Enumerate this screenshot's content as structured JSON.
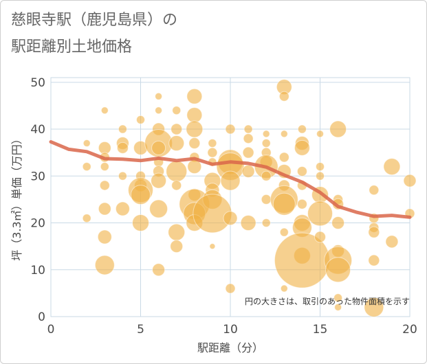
{
  "title_line1": "慈眼寺駅（鹿児島県）の",
  "title_line2": "駅距離別土地価格",
  "colors": {
    "bubble": "#f0b044",
    "trend": "#d9664a",
    "grid": "#c9d9e6",
    "plot_bg": "#ffffff"
  },
  "chart_data": {
    "type": "scatter",
    "xlabel": "駅距離（分）",
    "ylabel": "坪（3.3㎡）単価（万円）",
    "xlim": [
      0,
      20
    ],
    "ylim": [
      0,
      51
    ],
    "x_ticks": [
      "0",
      "5",
      "10",
      "15",
      "20"
    ],
    "y_ticks": [
      "0",
      "10",
      "20",
      "30",
      "40",
      "50"
    ],
    "x_tick_values": [
      0,
      5,
      10,
      15,
      20
    ],
    "y_tick_values": [
      0,
      10,
      20,
      30,
      40,
      50
    ],
    "note": "円の大きさは、取引のあった物件面積を示す",
    "bubbles": [
      {
        "x": 2,
        "y": 37,
        "s": 5
      },
      {
        "x": 2,
        "y": 32,
        "s": 6
      },
      {
        "x": 2,
        "y": 21,
        "s": 6
      },
      {
        "x": 3,
        "y": 44,
        "s": 5
      },
      {
        "x": 3,
        "y": 36,
        "s": 9
      },
      {
        "x": 3,
        "y": 34,
        "s": 7
      },
      {
        "x": 3,
        "y": 32,
        "s": 6
      },
      {
        "x": 3,
        "y": 28,
        "s": 7
      },
      {
        "x": 3,
        "y": 23,
        "s": 9
      },
      {
        "x": 3,
        "y": 17,
        "s": 10
      },
      {
        "x": 3,
        "y": 11,
        "s": 14
      },
      {
        "x": 4,
        "y": 40,
        "s": 6
      },
      {
        "x": 4,
        "y": 37,
        "s": 9
      },
      {
        "x": 4,
        "y": 36,
        "s": 8
      },
      {
        "x": 4,
        "y": 30,
        "s": 6
      },
      {
        "x": 4,
        "y": 23,
        "s": 10
      },
      {
        "x": 5,
        "y": 42,
        "s": 6
      },
      {
        "x": 5,
        "y": 36,
        "s": 10
      },
      {
        "x": 5,
        "y": 30,
        "s": 7
      },
      {
        "x": 5,
        "y": 28,
        "s": 9
      },
      {
        "x": 5,
        "y": 27,
        "s": 18
      },
      {
        "x": 5,
        "y": 26,
        "s": 14
      },
      {
        "x": 5,
        "y": 20,
        "s": 12
      },
      {
        "x": 6,
        "y": 47,
        "s": 5
      },
      {
        "x": 6,
        "y": 44,
        "s": 5
      },
      {
        "x": 6,
        "y": 40,
        "s": 9
      },
      {
        "x": 6,
        "y": 37,
        "s": 20
      },
      {
        "x": 6,
        "y": 36,
        "s": 10
      },
      {
        "x": 6,
        "y": 33,
        "s": 7
      },
      {
        "x": 6,
        "y": 31,
        "s": 8
      },
      {
        "x": 6,
        "y": 29,
        "s": 11
      },
      {
        "x": 6,
        "y": 23,
        "s": 13
      },
      {
        "x": 6,
        "y": 10,
        "s": 9
      },
      {
        "x": 7,
        "y": 44,
        "s": 6
      },
      {
        "x": 7,
        "y": 40,
        "s": 8
      },
      {
        "x": 7,
        "y": 37,
        "s": 11
      },
      {
        "x": 7,
        "y": 31,
        "s": 15
      },
      {
        "x": 7,
        "y": 28,
        "s": 7
      },
      {
        "x": 7,
        "y": 18,
        "s": 12
      },
      {
        "x": 7,
        "y": 15,
        "s": 9
      },
      {
        "x": 8,
        "y": 47,
        "s": 11
      },
      {
        "x": 8,
        "y": 43,
        "s": 11
      },
      {
        "x": 8,
        "y": 40,
        "s": 12
      },
      {
        "x": 8,
        "y": 37,
        "s": 8
      },
      {
        "x": 8,
        "y": 34,
        "s": 7
      },
      {
        "x": 8,
        "y": 32,
        "s": 10
      },
      {
        "x": 8,
        "y": 26,
        "s": 9
      },
      {
        "x": 8,
        "y": 24,
        "s": 22
      },
      {
        "x": 8,
        "y": 22,
        "s": 16
      },
      {
        "x": 8,
        "y": 20,
        "s": 12
      },
      {
        "x": 9,
        "y": 37,
        "s": 6
      },
      {
        "x": 9,
        "y": 35,
        "s": 7
      },
      {
        "x": 9,
        "y": 33,
        "s": 6
      },
      {
        "x": 9,
        "y": 29,
        "s": 12
      },
      {
        "x": 9,
        "y": 27,
        "s": 10
      },
      {
        "x": 9,
        "y": 25,
        "s": 14
      },
      {
        "x": 9,
        "y": 22,
        "s": 28
      },
      {
        "x": 9,
        "y": 15,
        "s": 4
      },
      {
        "x": 10,
        "y": 40,
        "s": 7
      },
      {
        "x": 10,
        "y": 33,
        "s": 18
      },
      {
        "x": 10,
        "y": 32,
        "s": 20
      },
      {
        "x": 10,
        "y": 29,
        "s": 14
      },
      {
        "x": 10,
        "y": 21,
        "s": 10
      },
      {
        "x": 10,
        "y": 6,
        "s": 7
      },
      {
        "x": 11,
        "y": 40,
        "s": 6
      },
      {
        "x": 11,
        "y": 38,
        "s": 7
      },
      {
        "x": 11,
        "y": 35,
        "s": 8
      },
      {
        "x": 11,
        "y": 31,
        "s": 9
      },
      {
        "x": 11,
        "y": 20,
        "s": 11
      },
      {
        "x": 12,
        "y": 39,
        "s": 5
      },
      {
        "x": 12,
        "y": 37,
        "s": 6
      },
      {
        "x": 12,
        "y": 35,
        "s": 7
      },
      {
        "x": 12,
        "y": 33,
        "s": 9
      },
      {
        "x": 12,
        "y": 32,
        "s": 17
      },
      {
        "x": 12,
        "y": 30,
        "s": 7
      },
      {
        "x": 12,
        "y": 25,
        "s": 7
      },
      {
        "x": 12,
        "y": 20,
        "s": 6
      },
      {
        "x": 13,
        "y": 49,
        "s": 11
      },
      {
        "x": 13,
        "y": 47,
        "s": 7
      },
      {
        "x": 13,
        "y": 39,
        "s": 5
      },
      {
        "x": 13,
        "y": 34,
        "s": 7
      },
      {
        "x": 13,
        "y": 31,
        "s": 10
      },
      {
        "x": 13,
        "y": 28,
        "s": 8
      },
      {
        "x": 13,
        "y": 25,
        "s": 20
      },
      {
        "x": 13,
        "y": 24,
        "s": 16
      },
      {
        "x": 13,
        "y": 18,
        "s": 6
      },
      {
        "x": 13,
        "y": 6,
        "s": 5
      },
      {
        "x": 14,
        "y": 40,
        "s": 6
      },
      {
        "x": 14,
        "y": 37,
        "s": 10
      },
      {
        "x": 14,
        "y": 36,
        "s": 11
      },
      {
        "x": 14,
        "y": 31,
        "s": 7
      },
      {
        "x": 14,
        "y": 28,
        "s": 7
      },
      {
        "x": 14,
        "y": 24,
        "s": 7
      },
      {
        "x": 14,
        "y": 20,
        "s": 12
      },
      {
        "x": 14,
        "y": 19,
        "s": 14
      },
      {
        "x": 14,
        "y": 13,
        "s": 12
      },
      {
        "x": 14,
        "y": 12,
        "s": 40
      },
      {
        "x": 15,
        "y": 39,
        "s": 5
      },
      {
        "x": 15,
        "y": 32,
        "s": 6
      },
      {
        "x": 15,
        "y": 30,
        "s": 6
      },
      {
        "x": 15,
        "y": 26,
        "s": 12
      },
      {
        "x": 15,
        "y": 22,
        "s": 18
      },
      {
        "x": 15,
        "y": 17,
        "s": 8
      },
      {
        "x": 16,
        "y": 40,
        "s": 12
      },
      {
        "x": 16,
        "y": 25,
        "s": 7
      },
      {
        "x": 16,
        "y": 24,
        "s": 8
      },
      {
        "x": 16,
        "y": 20,
        "s": 9
      },
      {
        "x": 16,
        "y": 14,
        "s": 9
      },
      {
        "x": 16,
        "y": 12,
        "s": 20
      },
      {
        "x": 16,
        "y": 10,
        "s": 18
      },
      {
        "x": 16,
        "y": 4,
        "s": 6
      },
      {
        "x": 16,
        "y": 2,
        "s": 5
      },
      {
        "x": 18,
        "y": 27,
        "s": 7
      },
      {
        "x": 18,
        "y": 21,
        "s": 7
      },
      {
        "x": 18,
        "y": 19,
        "s": 7
      },
      {
        "x": 18,
        "y": 18,
        "s": 8
      },
      {
        "x": 18,
        "y": 12,
        "s": 8
      },
      {
        "x": 18,
        "y": 2,
        "s": 14
      },
      {
        "x": 19,
        "y": 32,
        "s": 12
      },
      {
        "x": 19,
        "y": 16,
        "s": 9
      },
      {
        "x": 20,
        "y": 29,
        "s": 9
      },
      {
        "x": 20,
        "y": 22,
        "s": 7
      }
    ],
    "trend_line": [
      {
        "x": 0,
        "y": 37.3
      },
      {
        "x": 1,
        "y": 35.7
      },
      {
        "x": 2,
        "y": 35.2
      },
      {
        "x": 3,
        "y": 33.7
      },
      {
        "x": 4,
        "y": 33.6
      },
      {
        "x": 5,
        "y": 33.3
      },
      {
        "x": 6,
        "y": 33.8
      },
      {
        "x": 7,
        "y": 33.3
      },
      {
        "x": 8,
        "y": 33.7
      },
      {
        "x": 9,
        "y": 32.5
      },
      {
        "x": 10,
        "y": 33.0
      },
      {
        "x": 11,
        "y": 32.7
      },
      {
        "x": 12,
        "y": 31.9
      },
      {
        "x": 13,
        "y": 30.2
      },
      {
        "x": 14,
        "y": 28.7
      },
      {
        "x": 15,
        "y": 26.5
      },
      {
        "x": 16,
        "y": 23.5
      },
      {
        "x": 17,
        "y": 22.3
      },
      {
        "x": 18,
        "y": 21.4
      },
      {
        "x": 19,
        "y": 21.6
      },
      {
        "x": 20,
        "y": 21.2
      }
    ]
  }
}
